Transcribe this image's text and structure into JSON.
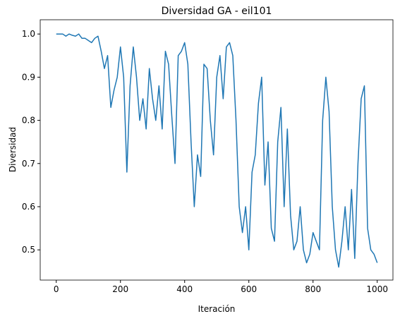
{
  "chart_data": {
    "type": "line",
    "title": "Diversidad GA - eil101",
    "xlabel": "Iteración",
    "ylabel": "Diversidad",
    "x": [
      0,
      10,
      20,
      30,
      40,
      50,
      60,
      70,
      80,
      90,
      100,
      110,
      120,
      130,
      140,
      150,
      160,
      170,
      180,
      190,
      200,
      210,
      220,
      230,
      240,
      250,
      260,
      270,
      280,
      290,
      300,
      310,
      320,
      330,
      340,
      350,
      360,
      370,
      380,
      390,
      400,
      410,
      420,
      430,
      440,
      450,
      460,
      470,
      480,
      490,
      500,
      510,
      520,
      530,
      540,
      550,
      560,
      570,
      580,
      590,
      600,
      610,
      620,
      630,
      640,
      650,
      660,
      670,
      680,
      690,
      700,
      710,
      720,
      730,
      740,
      750,
      760,
      770,
      780,
      790,
      800,
      810,
      820,
      830,
      840,
      850,
      860,
      870,
      880,
      890,
      900,
      910,
      920,
      930,
      940,
      950,
      960,
      970,
      980,
      990,
      1000
    ],
    "series": [
      {
        "name": "Diversidad",
        "color": "#1f77b4",
        "values": [
          1.0,
          1.0,
          1.0,
          0.995,
          1.0,
          0.997,
          0.995,
          1.0,
          0.99,
          0.99,
          0.985,
          0.98,
          0.99,
          0.995,
          0.96,
          0.92,
          0.95,
          0.83,
          0.87,
          0.9,
          0.97,
          0.9,
          0.68,
          0.88,
          0.97,
          0.9,
          0.8,
          0.85,
          0.78,
          0.92,
          0.85,
          0.8,
          0.88,
          0.78,
          0.96,
          0.93,
          0.81,
          0.7,
          0.95,
          0.96,
          0.98,
          0.93,
          0.75,
          0.6,
          0.72,
          0.67,
          0.93,
          0.92,
          0.8,
          0.72,
          0.9,
          0.95,
          0.85,
          0.97,
          0.98,
          0.95,
          0.8,
          0.6,
          0.54,
          0.6,
          0.5,
          0.68,
          0.72,
          0.84,
          0.9,
          0.65,
          0.75,
          0.55,
          0.52,
          0.75,
          0.83,
          0.6,
          0.78,
          0.58,
          0.5,
          0.52,
          0.6,
          0.5,
          0.47,
          0.49,
          0.54,
          0.52,
          0.5,
          0.8,
          0.9,
          0.82,
          0.6,
          0.5,
          0.46,
          0.52,
          0.6,
          0.5,
          0.64,
          0.48,
          0.7,
          0.85,
          0.88,
          0.55,
          0.5,
          0.49,
          0.47
        ]
      }
    ],
    "xlim": [
      -50,
      1049
    ],
    "ylim": [
      0.43,
      1.033
    ],
    "xticks": [
      0,
      200,
      400,
      600,
      800,
      1000
    ],
    "yticks": [
      0.5,
      0.6,
      0.7,
      0.8,
      0.9,
      {
        "value": 1,
        "label": "1.0"
      }
    ]
  }
}
